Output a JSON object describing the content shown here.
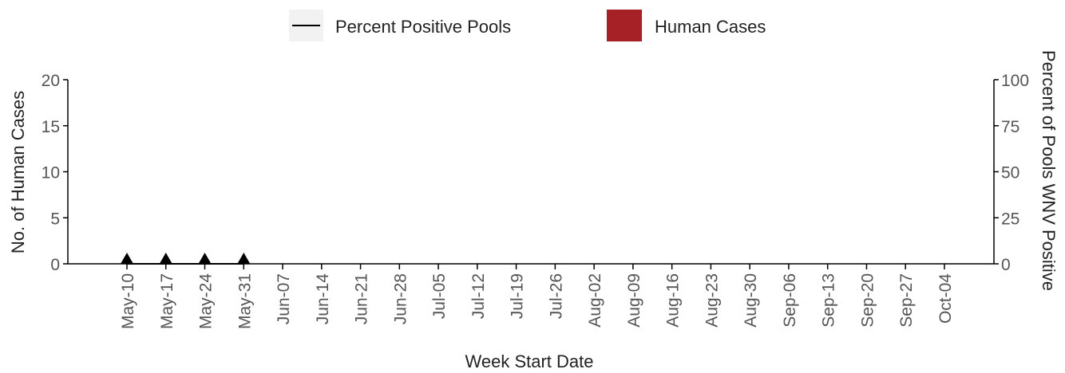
{
  "chart_data": {
    "type": "bar_line",
    "x_label": "Week Start Date",
    "y_label": "No. of Human Cases",
    "y2_label": "Percent of Pools WNV Positive",
    "categories": [
      "May-10",
      "May-17",
      "May-24",
      "May-31",
      "Jun-07",
      "Jun-14",
      "Jun-21",
      "Jun-28",
      "Jul-05",
      "Jul-12",
      "Jul-19",
      "Jul-26",
      "Aug-02",
      "Aug-09",
      "Aug-16",
      "Aug-23",
      "Aug-30",
      "Sep-06",
      "Sep-13",
      "Sep-20",
      "Sep-27",
      "Oct-04"
    ],
    "series": [
      {
        "name": "Percent Positive Pools",
        "type": "line",
        "axis": "y2",
        "color": "#000000",
        "values": [
          0,
          0,
          0,
          0,
          null,
          null,
          null,
          null,
          null,
          null,
          null,
          null,
          null,
          null,
          null,
          null,
          null,
          null,
          null,
          null,
          null,
          null
        ]
      },
      {
        "name": "Human Cases",
        "type": "bar",
        "color": "#a52126",
        "values": [
          0,
          0,
          0,
          0,
          0,
          0,
          0,
          0,
          0,
          0,
          0,
          0,
          0,
          0,
          0,
          0,
          0,
          0,
          0,
          0,
          0,
          0
        ]
      }
    ],
    "ylim": [
      0,
      20
    ],
    "yticks": [
      0,
      5,
      10,
      15,
      20
    ],
    "y2lim": [
      0,
      100
    ],
    "y2ticks": [
      0,
      25,
      50,
      75,
      100
    ]
  }
}
